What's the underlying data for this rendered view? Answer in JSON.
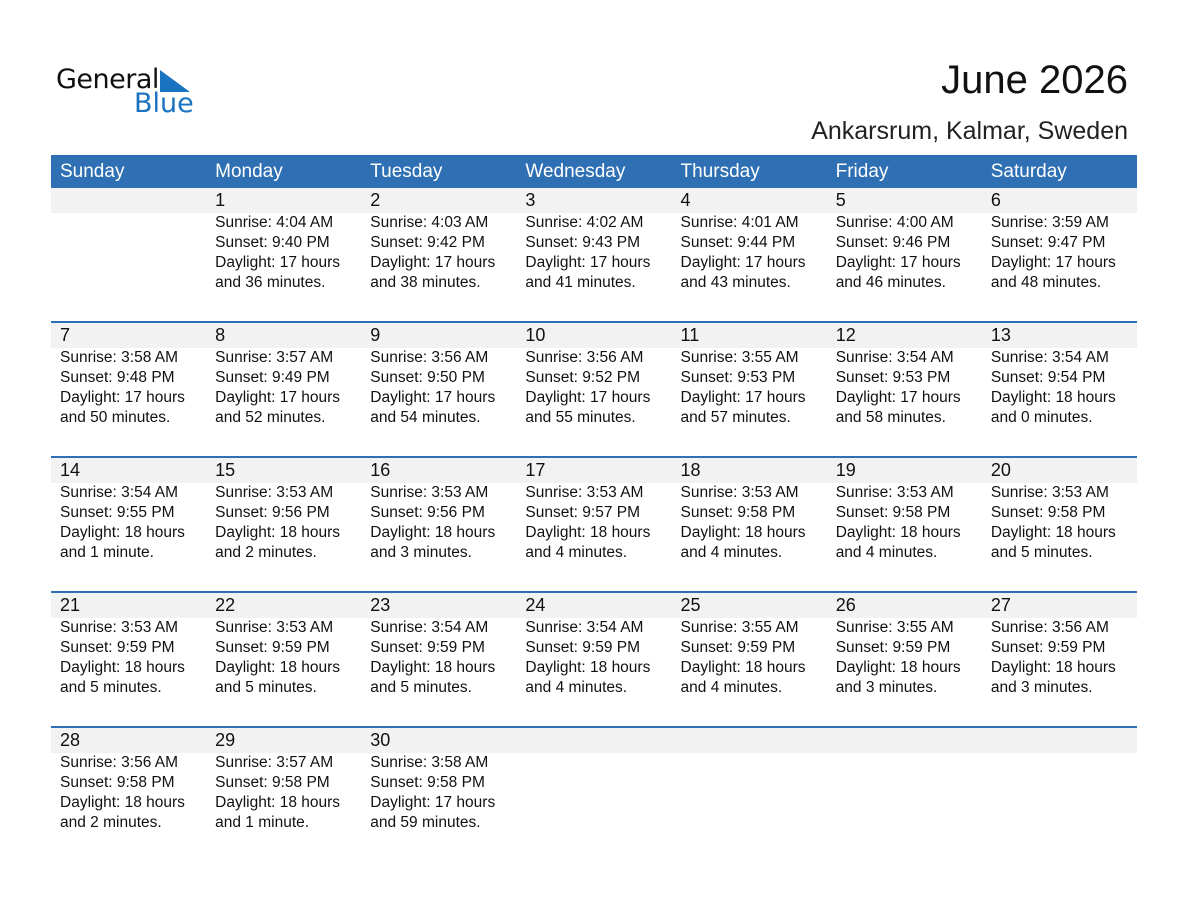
{
  "logo": {
    "line1": "General",
    "line2": "Blue"
  },
  "title": "June 2026",
  "location": "Ankarsrum, Kalmar, Sweden",
  "colors": {
    "header": "#2e70b3",
    "band": "#f2f2f2",
    "logo_blue": "#1a73c0"
  },
  "weekdays": [
    "Sunday",
    "Monday",
    "Tuesday",
    "Wednesday",
    "Thursday",
    "Friday",
    "Saturday"
  ],
  "weeks": [
    [
      null,
      {
        "day": "1",
        "sunrise": "Sunrise: 4:04 AM",
        "sunset": "Sunset: 9:40 PM",
        "daylight": "Daylight: 17 hours",
        "minutes": "and 36 minutes."
      },
      {
        "day": "2",
        "sunrise": "Sunrise: 4:03 AM",
        "sunset": "Sunset: 9:42 PM",
        "daylight": "Daylight: 17 hours",
        "minutes": "and 38 minutes."
      },
      {
        "day": "3",
        "sunrise": "Sunrise: 4:02 AM",
        "sunset": "Sunset: 9:43 PM",
        "daylight": "Daylight: 17 hours",
        "minutes": "and 41 minutes."
      },
      {
        "day": "4",
        "sunrise": "Sunrise: 4:01 AM",
        "sunset": "Sunset: 9:44 PM",
        "daylight": "Daylight: 17 hours",
        "minutes": "and 43 minutes."
      },
      {
        "day": "5",
        "sunrise": "Sunrise: 4:00 AM",
        "sunset": "Sunset: 9:46 PM",
        "daylight": "Daylight: 17 hours",
        "minutes": "and 46 minutes."
      },
      {
        "day": "6",
        "sunrise": "Sunrise: 3:59 AM",
        "sunset": "Sunset: 9:47 PM",
        "daylight": "Daylight: 17 hours",
        "minutes": "and 48 minutes."
      }
    ],
    [
      {
        "day": "7",
        "sunrise": "Sunrise: 3:58 AM",
        "sunset": "Sunset: 9:48 PM",
        "daylight": "Daylight: 17 hours",
        "minutes": "and 50 minutes."
      },
      {
        "day": "8",
        "sunrise": "Sunrise: 3:57 AM",
        "sunset": "Sunset: 9:49 PM",
        "daylight": "Daylight: 17 hours",
        "minutes": "and 52 minutes."
      },
      {
        "day": "9",
        "sunrise": "Sunrise: 3:56 AM",
        "sunset": "Sunset: 9:50 PM",
        "daylight": "Daylight: 17 hours",
        "minutes": "and 54 minutes."
      },
      {
        "day": "10",
        "sunrise": "Sunrise: 3:56 AM",
        "sunset": "Sunset: 9:52 PM",
        "daylight": "Daylight: 17 hours",
        "minutes": "and 55 minutes."
      },
      {
        "day": "11",
        "sunrise": "Sunrise: 3:55 AM",
        "sunset": "Sunset: 9:53 PM",
        "daylight": "Daylight: 17 hours",
        "minutes": "and 57 minutes."
      },
      {
        "day": "12",
        "sunrise": "Sunrise: 3:54 AM",
        "sunset": "Sunset: 9:53 PM",
        "daylight": "Daylight: 17 hours",
        "minutes": "and 58 minutes."
      },
      {
        "day": "13",
        "sunrise": "Sunrise: 3:54 AM",
        "sunset": "Sunset: 9:54 PM",
        "daylight": "Daylight: 18 hours",
        "minutes": "and 0 minutes."
      }
    ],
    [
      {
        "day": "14",
        "sunrise": "Sunrise: 3:54 AM",
        "sunset": "Sunset: 9:55 PM",
        "daylight": "Daylight: 18 hours",
        "minutes": "and 1 minute."
      },
      {
        "day": "15",
        "sunrise": "Sunrise: 3:53 AM",
        "sunset": "Sunset: 9:56 PM",
        "daylight": "Daylight: 18 hours",
        "minutes": "and 2 minutes."
      },
      {
        "day": "16",
        "sunrise": "Sunrise: 3:53 AM",
        "sunset": "Sunset: 9:56 PM",
        "daylight": "Daylight: 18 hours",
        "minutes": "and 3 minutes."
      },
      {
        "day": "17",
        "sunrise": "Sunrise: 3:53 AM",
        "sunset": "Sunset: 9:57 PM",
        "daylight": "Daylight: 18 hours",
        "minutes": "and 4 minutes."
      },
      {
        "day": "18",
        "sunrise": "Sunrise: 3:53 AM",
        "sunset": "Sunset: 9:58 PM",
        "daylight": "Daylight: 18 hours",
        "minutes": "and 4 minutes."
      },
      {
        "day": "19",
        "sunrise": "Sunrise: 3:53 AM",
        "sunset": "Sunset: 9:58 PM",
        "daylight": "Daylight: 18 hours",
        "minutes": "and 4 minutes."
      },
      {
        "day": "20",
        "sunrise": "Sunrise: 3:53 AM",
        "sunset": "Sunset: 9:58 PM",
        "daylight": "Daylight: 18 hours",
        "minutes": "and 5 minutes."
      }
    ],
    [
      {
        "day": "21",
        "sunrise": "Sunrise: 3:53 AM",
        "sunset": "Sunset: 9:59 PM",
        "daylight": "Daylight: 18 hours",
        "minutes": "and 5 minutes."
      },
      {
        "day": "22",
        "sunrise": "Sunrise: 3:53 AM",
        "sunset": "Sunset: 9:59 PM",
        "daylight": "Daylight: 18 hours",
        "minutes": "and 5 minutes."
      },
      {
        "day": "23",
        "sunrise": "Sunrise: 3:54 AM",
        "sunset": "Sunset: 9:59 PM",
        "daylight": "Daylight: 18 hours",
        "minutes": "and 5 minutes."
      },
      {
        "day": "24",
        "sunrise": "Sunrise: 3:54 AM",
        "sunset": "Sunset: 9:59 PM",
        "daylight": "Daylight: 18 hours",
        "minutes": "and 4 minutes."
      },
      {
        "day": "25",
        "sunrise": "Sunrise: 3:55 AM",
        "sunset": "Sunset: 9:59 PM",
        "daylight": "Daylight: 18 hours",
        "minutes": "and 4 minutes."
      },
      {
        "day": "26",
        "sunrise": "Sunrise: 3:55 AM",
        "sunset": "Sunset: 9:59 PM",
        "daylight": "Daylight: 18 hours",
        "minutes": "and 3 minutes."
      },
      {
        "day": "27",
        "sunrise": "Sunrise: 3:56 AM",
        "sunset": "Sunset: 9:59 PM",
        "daylight": "Daylight: 18 hours",
        "minutes": "and 3 minutes."
      }
    ],
    [
      {
        "day": "28",
        "sunrise": "Sunrise: 3:56 AM",
        "sunset": "Sunset: 9:58 PM",
        "daylight": "Daylight: 18 hours",
        "minutes": "and 2 minutes."
      },
      {
        "day": "29",
        "sunrise": "Sunrise: 3:57 AM",
        "sunset": "Sunset: 9:58 PM",
        "daylight": "Daylight: 18 hours",
        "minutes": "and 1 minute."
      },
      {
        "day": "30",
        "sunrise": "Sunrise: 3:58 AM",
        "sunset": "Sunset: 9:58 PM",
        "daylight": "Daylight: 17 hours",
        "minutes": "and 59 minutes."
      },
      null,
      null,
      null,
      null
    ]
  ]
}
